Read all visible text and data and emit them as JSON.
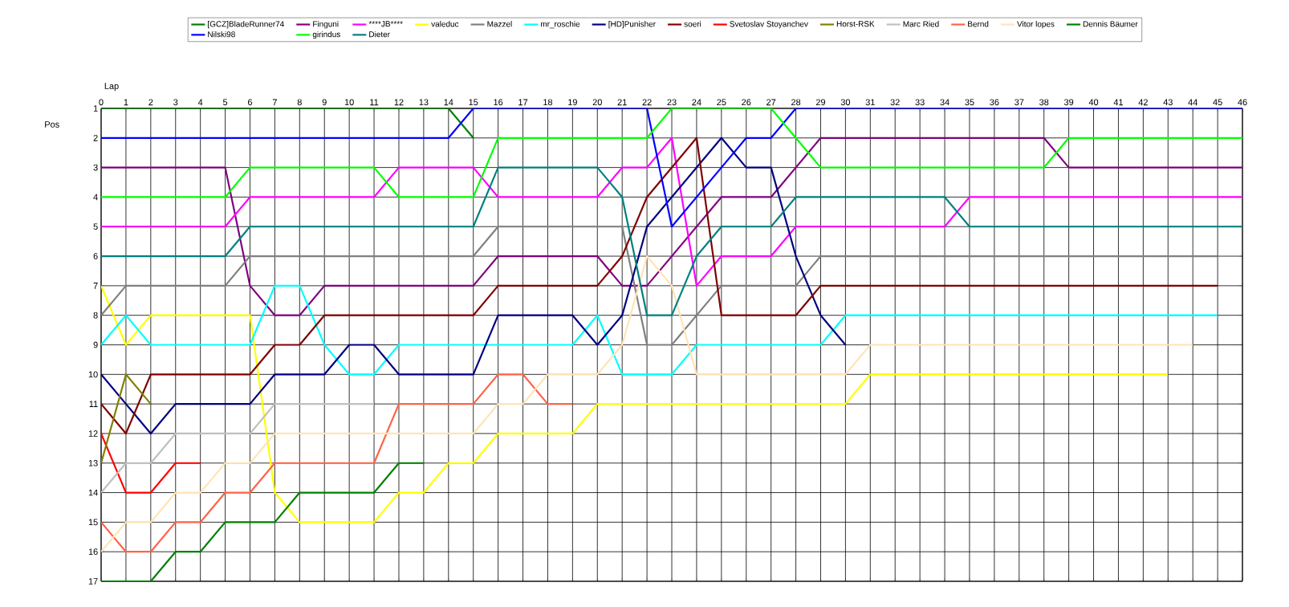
{
  "chart_data": {
    "type": "line",
    "xlabel": "Lap",
    "ylabel": "Pos",
    "x": [
      0,
      1,
      2,
      3,
      4,
      5,
      6,
      7,
      8,
      9,
      10,
      11,
      12,
      13,
      14,
      15,
      16,
      17,
      18,
      19,
      20,
      21,
      22,
      23,
      24,
      25,
      26,
      27,
      28,
      29,
      30,
      31,
      32,
      33,
      34,
      35,
      36,
      37,
      38,
      39,
      40,
      41,
      42,
      43,
      44,
      45,
      46
    ],
    "xlim": [
      0,
      46
    ],
    "xticks": [
      0,
      1,
      2,
      3,
      4,
      5,
      6,
      7,
      8,
      9,
      10,
      11,
      12,
      13,
      14,
      15,
      16,
      17,
      18,
      19,
      20,
      21,
      22,
      23,
      24,
      25,
      26,
      27,
      28,
      29,
      30,
      31,
      32,
      33,
      34,
      35,
      36,
      37,
      38,
      39,
      40,
      41,
      42,
      43,
      44,
      45,
      46
    ],
    "ylim": [
      17,
      1
    ],
    "yticks": [
      1,
      2,
      3,
      4,
      5,
      6,
      7,
      8,
      9,
      10,
      11,
      12,
      13,
      14,
      15,
      16,
      17
    ],
    "grid": true,
    "legend": "top",
    "series": [
      {
        "name": "[GCZ]BladeRunner74",
        "color": "#008000",
        "values": [
          1,
          1,
          1,
          1,
          1,
          1,
          1,
          1,
          1,
          1,
          1,
          1,
          1,
          1,
          1,
          2,
          null,
          null,
          null,
          null,
          null,
          null,
          null,
          null,
          null,
          null,
          null,
          null,
          null,
          null,
          null,
          null,
          null,
          null,
          null,
          null,
          null,
          null,
          null,
          null,
          null,
          null,
          null,
          null,
          null,
          null,
          null
        ]
      },
      {
        "name": "Finguni",
        "color": "#800080",
        "values": [
          3,
          3,
          3,
          3,
          3,
          3,
          7,
          8,
          8,
          7,
          7,
          7,
          7,
          7,
          7,
          7,
          6,
          6,
          6,
          6,
          6,
          7,
          7,
          6,
          5,
          4,
          4,
          4,
          3,
          2,
          2,
          2,
          2,
          2,
          2,
          2,
          2,
          2,
          2,
          3,
          3,
          3,
          3,
          3,
          3,
          3,
          3
        ]
      },
      {
        "name": "****JB****",
        "color": "#ff00ff",
        "values": [
          5,
          5,
          5,
          5,
          5,
          5,
          4,
          4,
          4,
          4,
          4,
          4,
          3,
          3,
          3,
          3,
          4,
          4,
          4,
          4,
          4,
          3,
          3,
          2,
          7,
          6,
          6,
          6,
          5,
          5,
          5,
          5,
          5,
          5,
          5,
          4,
          4,
          4,
          4,
          4,
          4,
          4,
          4,
          4,
          4,
          4,
          4
        ]
      },
      {
        "name": "valeduc",
        "color": "#ffff00",
        "values": [
          7,
          9,
          8,
          8,
          8,
          8,
          8,
          14,
          15,
          15,
          15,
          15,
          14,
          14,
          13,
          13,
          12,
          12,
          12,
          12,
          11,
          11,
          11,
          11,
          11,
          11,
          11,
          11,
          11,
          11,
          11,
          10,
          10,
          10,
          10,
          10,
          10,
          10,
          10,
          10,
          10,
          10,
          10,
          10,
          null,
          null,
          null
        ]
      },
      {
        "name": "Mazzel",
        "color": "#808080",
        "values": [
          8,
          7,
          7,
          7,
          7,
          7,
          6,
          6,
          6,
          6,
          6,
          6,
          6,
          6,
          6,
          6,
          5,
          5,
          5,
          5,
          5,
          5,
          9,
          9,
          8,
          7,
          7,
          7,
          7,
          6,
          6,
          6,
          6,
          6,
          6,
          6,
          6,
          6,
          6,
          6,
          6,
          6,
          6,
          6,
          6,
          6,
          null
        ]
      },
      {
        "name": "mr_roschie",
        "color": "#00ffff",
        "values": [
          9,
          8,
          9,
          9,
          9,
          9,
          9,
          7,
          7,
          9,
          10,
          10,
          9,
          9,
          9,
          9,
          9,
          9,
          9,
          9,
          8,
          10,
          10,
          10,
          9,
          9,
          9,
          9,
          9,
          9,
          8,
          8,
          8,
          8,
          8,
          8,
          8,
          8,
          8,
          8,
          8,
          8,
          8,
          8,
          8,
          8,
          null
        ]
      },
      {
        "name": "[HD]Punisher",
        "color": "#000080",
        "values": [
          10,
          11,
          12,
          11,
          11,
          11,
          11,
          10,
          10,
          10,
          9,
          9,
          10,
          10,
          10,
          10,
          8,
          8,
          8,
          8,
          9,
          8,
          5,
          4,
          3,
          2,
          3,
          3,
          6,
          8,
          9,
          null,
          null,
          null,
          null,
          null,
          null,
          null,
          null,
          null,
          null,
          null,
          null,
          null,
          null,
          null,
          null
        ]
      },
      {
        "name": "soeri",
        "color": "#800000",
        "values": [
          11,
          12,
          10,
          10,
          10,
          10,
          10,
          9,
          9,
          8,
          8,
          8,
          8,
          8,
          8,
          8,
          7,
          7,
          7,
          7,
          7,
          6,
          4,
          3,
          2,
          8,
          8,
          8,
          8,
          7,
          7,
          7,
          7,
          7,
          7,
          7,
          7,
          7,
          7,
          7,
          7,
          7,
          7,
          7,
          7,
          7,
          null
        ]
      },
      {
        "name": "Svetoslav Stoyanchev",
        "color": "#ff0000",
        "values": [
          12,
          14,
          14,
          13,
          13,
          null,
          null,
          null,
          null,
          null,
          null,
          null,
          null,
          null,
          null,
          null,
          null,
          null,
          null,
          null,
          null,
          null,
          null,
          null,
          null,
          null,
          null,
          null,
          null,
          null,
          null,
          null,
          null,
          null,
          null,
          null,
          null,
          null,
          null,
          null,
          null,
          null,
          null,
          null,
          null,
          null,
          null
        ]
      },
      {
        "name": "Horst-RSK",
        "color": "#808000",
        "values": [
          13,
          10,
          11,
          null,
          null,
          null,
          null,
          null,
          null,
          null,
          null,
          null,
          null,
          null,
          null,
          null,
          null,
          null,
          null,
          null,
          null,
          null,
          null,
          null,
          null,
          null,
          null,
          null,
          null,
          null,
          null,
          null,
          null,
          null,
          null,
          null,
          null,
          null,
          null,
          null,
          null,
          null,
          null,
          null,
          null,
          null,
          null
        ]
      },
      {
        "name": "Marc Ried",
        "color": "#c0c0c0",
        "values": [
          14,
          13,
          13,
          12,
          12,
          12,
          12,
          11,
          11,
          11,
          11,
          11,
          null,
          null,
          null,
          null,
          null,
          null,
          null,
          null,
          null,
          null,
          null,
          null,
          null,
          null,
          null,
          null,
          null,
          null,
          null,
          null,
          null,
          null,
          null,
          null,
          null,
          null,
          null,
          null,
          null,
          null,
          null,
          null,
          null,
          null,
          null
        ]
      },
      {
        "name": "Bernd",
        "color": "#ff6347",
        "values": [
          15,
          16,
          16,
          15,
          15,
          14,
          14,
          13,
          13,
          13,
          13,
          13,
          11,
          11,
          11,
          11,
          10,
          10,
          11,
          11,
          null,
          null,
          null,
          null,
          null,
          null,
          null,
          null,
          null,
          null,
          null,
          null,
          null,
          null,
          null,
          null,
          null,
          null,
          null,
          null,
          null,
          null,
          null,
          null,
          null,
          null,
          null
        ]
      },
      {
        "name": "Vitor lopes",
        "color": "#ffe4b5",
        "values": [
          16,
          15,
          15,
          14,
          14,
          13,
          13,
          12,
          12,
          12,
          12,
          12,
          12,
          12,
          12,
          12,
          11,
          11,
          10,
          10,
          10,
          9,
          6,
          7,
          10,
          10,
          10,
          10,
          10,
          10,
          10,
          9,
          9,
          9,
          9,
          9,
          9,
          9,
          9,
          9,
          9,
          9,
          9,
          9,
          9,
          null,
          null
        ]
      },
      {
        "name": "Dennis Bäumer",
        "color": "#008000",
        "values": [
          17,
          17,
          17,
          16,
          16,
          15,
          15,
          15,
          14,
          14,
          14,
          14,
          13,
          13,
          null,
          null,
          null,
          null,
          null,
          null,
          null,
          null,
          null,
          null,
          null,
          null,
          null,
          null,
          null,
          null,
          null,
          null,
          null,
          null,
          null,
          null,
          null,
          null,
          null,
          null,
          null,
          null,
          null,
          null,
          null,
          null,
          null
        ]
      },
      {
        "name": "Nilski98",
        "color": "#0000ff",
        "values": [
          2,
          2,
          2,
          2,
          2,
          2,
          2,
          2,
          2,
          2,
          2,
          2,
          2,
          2,
          2,
          1,
          1,
          1,
          1,
          1,
          1,
          1,
          1,
          5,
          4,
          3,
          2,
          2,
          1,
          1,
          1,
          1,
          1,
          1,
          1,
          1,
          1,
          1,
          1,
          1,
          1,
          1,
          1,
          1,
          1,
          1,
          1
        ]
      },
      {
        "name": "girindus",
        "color": "#00ff00",
        "values": [
          4,
          4,
          4,
          4,
          4,
          4,
          3,
          3,
          3,
          3,
          3,
          3,
          4,
          4,
          4,
          4,
          2,
          2,
          2,
          2,
          2,
          2,
          2,
          1,
          1,
          1,
          1,
          1,
          2,
          3,
          3,
          3,
          3,
          3,
          3,
          3,
          3,
          3,
          3,
          2,
          2,
          2,
          2,
          2,
          2,
          2,
          2
        ]
      },
      {
        "name": "Dieter",
        "color": "#008080",
        "values": [
          6,
          6,
          6,
          6,
          6,
          6,
          5,
          5,
          5,
          5,
          5,
          5,
          5,
          5,
          5,
          5,
          3,
          3,
          3,
          3,
          3,
          4,
          8,
          8,
          6,
          5,
          5,
          5,
          4,
          4,
          4,
          4,
          4,
          4,
          4,
          5,
          5,
          5,
          5,
          5,
          5,
          5,
          5,
          5,
          5,
          5,
          5
        ]
      }
    ]
  }
}
